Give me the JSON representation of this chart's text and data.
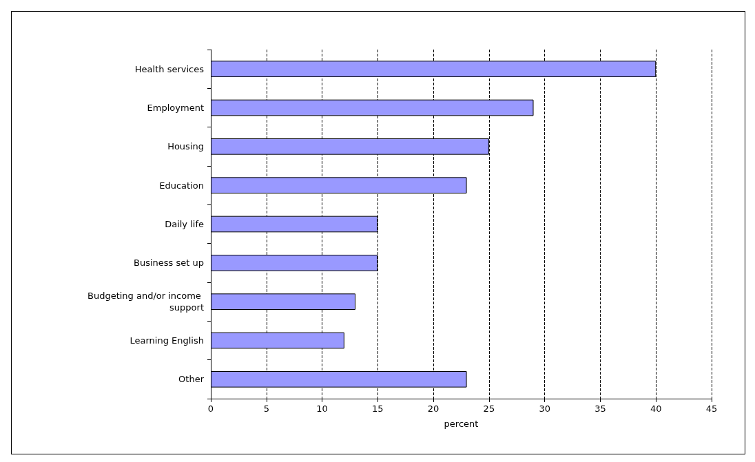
{
  "chart_data": {
    "type": "bar",
    "orientation": "horizontal",
    "xlabel": "percent",
    "categories": [
      "Health services",
      "Employment",
      "Housing",
      "Education",
      "Daily life",
      "Business set up",
      "Budgeting and/or income support",
      "Learning English",
      "Other"
    ],
    "values": [
      40,
      29,
      25,
      23,
      15,
      15,
      13,
      12,
      23
    ],
    "color": "#9999ff",
    "xlim": [
      0,
      45
    ],
    "xticks": [
      0,
      5,
      10,
      15,
      20,
      25,
      30,
      35,
      40,
      45
    ],
    "grid": "x"
  }
}
